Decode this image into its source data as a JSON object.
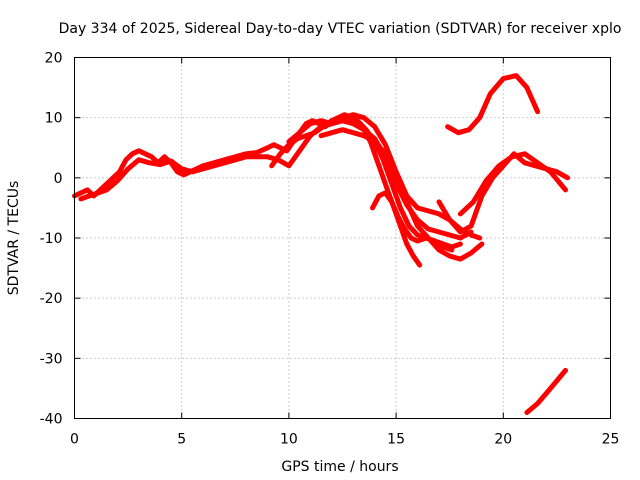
{
  "chart_data": {
    "type": "line",
    "title": "Day 334 of 2025, Sidereal Day-to-day VTEC variation (SDTVAR) for receiver xplo",
    "xlabel": "GPS time / hours",
    "ylabel": "SDTVAR / TECUs",
    "xlim": [
      0,
      25
    ],
    "ylim": [
      -40,
      20
    ],
    "x_ticks": [
      0,
      5,
      10,
      15,
      20,
      25
    ],
    "y_ticks": [
      -40,
      -30,
      -20,
      -10,
      0,
      10,
      20
    ],
    "x_tick_labels": [
      "0",
      "5",
      "10",
      "15",
      "20",
      "25"
    ],
    "y_tick_labels": [
      "-40",
      "-30",
      "-20",
      "-10",
      "0",
      "10",
      "20"
    ],
    "grid": true,
    "line_color": "#ff0000",
    "series": [
      {
        "name": "trace-1",
        "x": [
          0.0,
          0.3,
          0.6,
          0.9,
          1.2,
          1.5,
          1.8,
          2.1,
          2.4,
          2.7,
          3.0,
          3.3,
          3.6,
          3.9,
          4.2,
          4.5,
          4.8,
          5.1,
          5.4,
          5.7,
          6.0,
          6.5,
          7.0,
          7.5,
          8.0,
          8.5,
          9.0,
          9.3,
          9.6,
          9.9,
          10.2,
          10.5,
          10.8,
          11.1,
          11.4,
          11.7,
          12.0,
          12.3,
          12.6,
          12.9,
          13.2,
          13.5,
          13.8,
          14.0,
          14.3,
          14.6,
          14.9,
          15.2,
          15.5,
          15.8,
          16.1
        ],
        "y": [
          -3,
          -2.5,
          -2,
          -3,
          -2,
          -1,
          0,
          1,
          3,
          4,
          4.5,
          4,
          3.5,
          2.5,
          3.5,
          2.5,
          1,
          0.5,
          1,
          1.5,
          2,
          2.5,
          3,
          3.5,
          4,
          4.2,
          5,
          5.5,
          5,
          4.5,
          6,
          7.5,
          9,
          9.5,
          9,
          8.5,
          9.5,
          10,
          10.5,
          10,
          9,
          8,
          6,
          4,
          1,
          -2,
          -5,
          -8,
          -11,
          -13,
          -14.5
        ]
      },
      {
        "name": "trace-2",
        "x": [
          0.3,
          0.7,
          1.1,
          1.5,
          2.0,
          2.5,
          3.0,
          3.5,
          4.0,
          4.5,
          5.0,
          5.5,
          6.0,
          6.5,
          7.0,
          7.5,
          8.0,
          8.5,
          9.0,
          9.5,
          10.0,
          10.5,
          11.0,
          11.5,
          12.0,
          12.5,
          13.0,
          13.5,
          14.0,
          14.5,
          15.0,
          15.5,
          16.0,
          16.5,
          17.0,
          17.5,
          18.0,
          18.5
        ],
        "y": [
          -3.5,
          -3,
          -2.5,
          -2,
          -0.5,
          1.5,
          3,
          2.5,
          2.2,
          2.8,
          1.5,
          1,
          1.5,
          2,
          2.5,
          3,
          3.5,
          3.5,
          3.5,
          3,
          2,
          4.5,
          7,
          8.5,
          9,
          9.5,
          9,
          8,
          6.5,
          3.5,
          -1,
          -4.5,
          -7,
          -8.5,
          -9,
          -9.5,
          -10,
          -9
        ]
      },
      {
        "name": "trace-3",
        "x": [
          9.2,
          9.6,
          10.0,
          10.4,
          10.8,
          11.2,
          11.6,
          12.0,
          12.4,
          12.8,
          13.2,
          13.6,
          14.0,
          14.4,
          14.8,
          15.2,
          15.6,
          16.0,
          16.4,
          16.8,
          17.2,
          17.6
        ],
        "y": [
          2,
          4,
          5.5,
          6.5,
          7,
          7.5,
          8.5,
          9.5,
          10,
          10,
          9.5,
          8,
          6,
          3,
          -1,
          -5,
          -8,
          -9.5,
          -10,
          -10.5,
          -11.5,
          -12
        ]
      },
      {
        "name": "trace-4",
        "x": [
          10.0,
          10.5,
          11.0,
          11.5,
          12.0,
          12.5,
          13.0,
          13.5,
          14.0,
          14.5,
          15.0,
          15.5,
          16.0,
          16.5,
          17.0,
          17.5,
          18.0,
          18.5,
          18.9
        ],
        "y": [
          6,
          7.5,
          9,
          9.5,
          9,
          10,
          10.5,
          10,
          8.5,
          5.5,
          1,
          -3,
          -5,
          -5.5,
          -6,
          -7,
          -8.5,
          -9.5,
          -10
        ]
      },
      {
        "name": "trace-5",
        "x": [
          13.9,
          14.2,
          14.5,
          14.8,
          15.1,
          15.4,
          15.7,
          16.0,
          16.4,
          16.8,
          17.2,
          17.6,
          18.0
        ],
        "y": [
          -5,
          -3,
          -2.5,
          -4,
          -6.5,
          -8.5,
          -10,
          -10.5,
          -10,
          -10.5,
          -11,
          -11.5,
          -11
        ]
      },
      {
        "name": "trace-6",
        "x": [
          11.5,
          12.0,
          12.5,
          13.0,
          13.5,
          14.0,
          14.5,
          15.0,
          15.5,
          16.0,
          16.5,
          17.0,
          17.5,
          18.0,
          18.5,
          19.0
        ],
        "y": [
          7,
          7.5,
          8,
          7.5,
          7,
          6,
          4,
          0,
          -4,
          -8,
          -10,
          -12,
          -13,
          -13.5,
          -12.5,
          -11
        ]
      },
      {
        "name": "trace-7",
        "x": [
          18.0,
          18.6,
          19.2,
          19.8,
          20.4,
          21.0,
          21.6,
          22.2,
          22.9
        ],
        "y": [
          -6,
          -4,
          -0.5,
          2,
          3.5,
          4,
          2.5,
          1,
          -2
        ]
      },
      {
        "name": "trace-8",
        "x": [
          17.0,
          17.5,
          18.0,
          18.5,
          19.0,
          19.5,
          20.0,
          20.5,
          21.0,
          21.5,
          22.0,
          22.5,
          23.0
        ],
        "y": [
          -4,
          -7,
          -9,
          -8,
          -3,
          0,
          2,
          4,
          2.5,
          2,
          1.5,
          1,
          0
        ]
      },
      {
        "name": "trace-9",
        "x": [
          17.4,
          17.9,
          18.4,
          18.9,
          19.4,
          20.0,
          20.6,
          21.1,
          21.6
        ],
        "y": [
          8.5,
          7.5,
          8,
          10,
          14,
          16.5,
          17,
          15,
          11
        ]
      },
      {
        "name": "trace-10",
        "x": [
          21.1,
          21.6,
          22.2,
          22.9
        ],
        "y": [
          -39,
          -37.5,
          -35,
          -32
        ]
      }
    ]
  }
}
